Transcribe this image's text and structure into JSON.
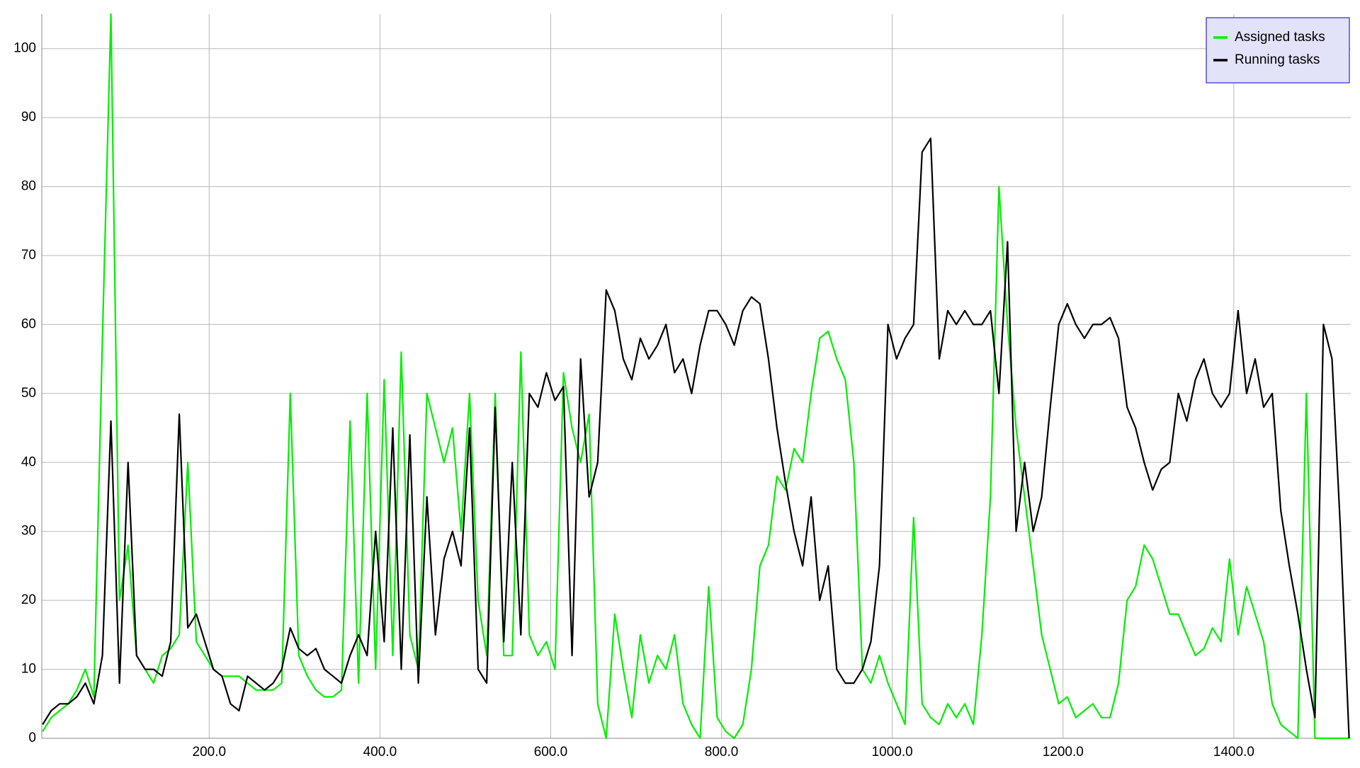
{
  "chart_data": {
    "type": "line",
    "x": [
      5,
      15,
      25,
      35,
      45,
      55,
      65,
      75,
      85,
      95,
      105,
      115,
      125,
      135,
      145,
      155,
      165,
      175,
      185,
      195,
      205,
      215,
      225,
      235,
      245,
      255,
      265,
      275,
      285,
      295,
      305,
      315,
      325,
      335,
      345,
      355,
      365,
      375,
      385,
      395,
      405,
      415,
      425,
      435,
      445,
      455,
      465,
      475,
      485,
      495,
      505,
      515,
      525,
      535,
      545,
      555,
      565,
      575,
      585,
      595,
      605,
      615,
      625,
      635,
      645,
      655,
      665,
      675,
      685,
      695,
      705,
      715,
      725,
      735,
      745,
      755,
      765,
      775,
      785,
      795,
      805,
      815,
      825,
      835,
      845,
      855,
      865,
      875,
      885,
      895,
      905,
      915,
      925,
      935,
      945,
      955,
      965,
      975,
      985,
      995,
      1005,
      1015,
      1025,
      1035,
      1045,
      1055,
      1065,
      1075,
      1085,
      1095,
      1105,
      1115,
      1125,
      1135,
      1145,
      1155,
      1165,
      1175,
      1185,
      1195,
      1205,
      1215,
      1225,
      1235,
      1245,
      1255,
      1265,
      1275,
      1285,
      1295,
      1305,
      1315,
      1325,
      1335,
      1345,
      1355,
      1365,
      1375,
      1385,
      1395,
      1405,
      1415,
      1425,
      1435,
      1445,
      1455,
      1465,
      1475,
      1485,
      1495,
      1505,
      1515,
      1525,
      1535
    ],
    "series": [
      {
        "name": "Assigned tasks",
        "color": "#00ee00",
        "values": [
          1,
          3,
          4,
          5,
          7,
          10,
          6,
          58,
          105,
          20,
          28,
          12,
          10,
          8,
          12,
          13,
          15,
          40,
          14,
          12,
          10,
          9,
          9,
          9,
          8,
          7,
          7,
          7,
          8,
          50,
          12,
          9,
          7,
          6,
          6,
          7,
          46,
          8,
          50,
          10,
          52,
          12,
          56,
          15,
          10,
          50,
          45,
          40,
          45,
          30,
          50,
          20,
          12,
          50,
          12,
          12,
          56,
          15,
          12,
          14,
          10,
          53,
          45,
          40,
          47,
          5,
          0,
          18,
          10,
          3,
          15,
          8,
          12,
          10,
          15,
          5,
          2,
          0,
          22,
          3,
          1,
          0,
          2,
          10,
          25,
          28,
          38,
          36,
          42,
          40,
          50,
          58,
          59,
          55,
          52,
          40,
          10,
          8,
          12,
          8,
          5,
          2,
          32,
          5,
          3,
          2,
          5,
          3,
          5,
          2,
          15,
          35,
          80,
          60,
          45,
          35,
          25,
          15,
          10,
          5,
          6,
          3,
          4,
          5,
          3,
          3,
          8,
          20,
          22,
          28,
          26,
          22,
          18,
          18,
          15,
          12,
          13,
          16,
          14,
          26,
          15,
          22,
          18,
          14,
          5,
          2,
          1,
          0,
          50,
          0,
          0,
          0,
          0,
          0
        ]
      },
      {
        "name": "Running tasks",
        "color": "#000000",
        "values": [
          2,
          4,
          5,
          5,
          6,
          8,
          5,
          12,
          46,
          8,
          40,
          12,
          10,
          10,
          9,
          14,
          47,
          16,
          18,
          14,
          10,
          9,
          5,
          4,
          9,
          8,
          7,
          8,
          10,
          16,
          13,
          12,
          13,
          10,
          9,
          8,
          12,
          15,
          12,
          30,
          14,
          45,
          10,
          44,
          8,
          35,
          15,
          26,
          30,
          25,
          45,
          10,
          8,
          48,
          14,
          40,
          15,
          50,
          48,
          53,
          49,
          51,
          12,
          55,
          35,
          40,
          65,
          62,
          55,
          52,
          58,
          55,
          57,
          60,
          53,
          55,
          50,
          57,
          62,
          62,
          60,
          57,
          62,
          64,
          63,
          55,
          45,
          37,
          30,
          25,
          35,
          20,
          25,
          10,
          8,
          8,
          10,
          14,
          25,
          60,
          55,
          58,
          60,
          85,
          87,
          55,
          62,
          60,
          62,
          60,
          60,
          62,
          50,
          72,
          30,
          40,
          30,
          35,
          48,
          60,
          63,
          60,
          58,
          60,
          60,
          61,
          58,
          48,
          45,
          40,
          36,
          39,
          40,
          50,
          46,
          52,
          55,
          50,
          48,
          50,
          62,
          50,
          55,
          48,
          50,
          33,
          25,
          18,
          10,
          3,
          60,
          55,
          30,
          0
        ]
      }
    ],
    "xlim": [
      4,
      1537
    ],
    "xticks": [
      {
        "value": 200,
        "label": "200.0"
      },
      {
        "value": 400,
        "label": "400.0"
      },
      {
        "value": 600,
        "label": "600.0"
      },
      {
        "value": 800,
        "label": "800.0"
      },
      {
        "value": 1000,
        "label": "1000.0"
      },
      {
        "value": 1200,
        "label": "1200.0"
      },
      {
        "value": 1400,
        "label": "1400.0"
      }
    ],
    "ylim": [
      0,
      105
    ],
    "yticks": [
      0,
      10,
      20,
      30,
      40,
      50,
      60,
      70,
      80,
      90,
      100
    ],
    "grid": true,
    "legend": "upper-right"
  }
}
